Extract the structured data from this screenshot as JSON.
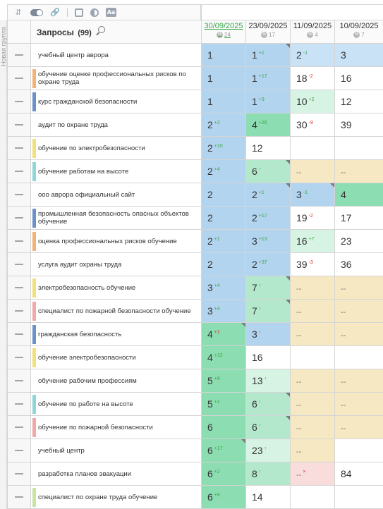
{
  "sidebar": {
    "group_label": "Новая группа"
  },
  "toolbar": {
    "icons": [
      "sort-icon",
      "toggle-icon",
      "link-icon",
      "square-icon",
      "contrast-icon",
      "font-icon"
    ]
  },
  "header": {
    "title": "Запросы",
    "count": "(99)",
    "dates": [
      {
        "label": "30/09/2025",
        "meta": "24",
        "active": true
      },
      {
        "label": "23/09/2025",
        "meta": "17",
        "active": false
      },
      {
        "label": "11/09/2025",
        "meta": "4",
        "active": false
      },
      {
        "label": "10/09/2025",
        "meta": "7",
        "active": false
      }
    ]
  },
  "colors": {
    "bar_orange": "#f2b27a",
    "bar_blue": "#6b92c6",
    "bar_yellow": "#f2e07a",
    "bar_teal": "#8fd7d7",
    "bar_pink": "#f2a8a8",
    "bar_lgreen": "#c7e6a3",
    "bar_none": "transparent"
  },
  "rows": [
    {
      "query": "учебный центр аврора",
      "bar": "bar_none",
      "cells": [
        {
          "v": "1",
          "d": "",
          "t": "t-blue"
        },
        {
          "v": "1",
          "d": "+1",
          "dir": "up",
          "t": "t-blue",
          "corner": true
        },
        {
          "v": "2",
          "d": "-1",
          "dir": "up",
          "t": "t-lblue"
        },
        {
          "v": "3",
          "d": "",
          "t": "t-lblue"
        }
      ]
    },
    {
      "query": "обучение оценке профессиональных рисков по охране труда",
      "bar": "bar_orange",
      "cells": [
        {
          "v": "1",
          "d": "",
          "t": "t-blue"
        },
        {
          "v": "1",
          "d": "+17",
          "dir": "up",
          "t": "t-blue"
        },
        {
          "v": "18",
          "d": "-2",
          "dir": "down",
          "t": "t-white"
        },
        {
          "v": "16",
          "d": "",
          "t": "t-white"
        }
      ]
    },
    {
      "query": "курс гражданской безопасности",
      "bar": "bar_blue",
      "cells": [
        {
          "v": "1",
          "d": "",
          "t": "t-blue"
        },
        {
          "v": "1",
          "d": "+9",
          "dir": "up",
          "t": "t-blue"
        },
        {
          "v": "10",
          "d": "+2",
          "dir": "up",
          "t": "t-vlgreen"
        },
        {
          "v": "12",
          "d": "",
          "t": "t-white"
        }
      ]
    },
    {
      "query": "аудит по охране труда",
      "bar": "bar_none",
      "cells": [
        {
          "v": "2",
          "d": "+2",
          "dir": "up",
          "t": "t-blue"
        },
        {
          "v": "4",
          "d": "+26",
          "dir": "up",
          "t": "t-green"
        },
        {
          "v": "30",
          "d": "-9",
          "dir": "down",
          "t": "t-white"
        },
        {
          "v": "39",
          "d": "",
          "t": "t-white"
        }
      ]
    },
    {
      "query": "обучение по электробезопасности",
      "bar": "bar_yellow",
      "cells": [
        {
          "v": "2",
          "d": "+10",
          "dir": "up",
          "t": "t-blue"
        },
        {
          "v": "12",
          "d": "",
          "t": "t-white"
        },
        {
          "v": "",
          "d": "",
          "t": "t-white"
        },
        {
          "v": "",
          "d": "",
          "t": "t-white"
        }
      ]
    },
    {
      "query": "обучение работам на высоте",
      "bar": "bar_teal",
      "cells": [
        {
          "v": "2",
          "d": "+4",
          "dir": "up",
          "t": "t-blue"
        },
        {
          "v": "6",
          "d": "↑",
          "dir": "up",
          "t": "t-lgreen",
          "corner": true
        },
        {
          "v": "--",
          "d": "",
          "t": "t-yellow",
          "miss": true
        },
        {
          "v": "--",
          "d": "",
          "t": "t-yellow",
          "miss": true
        }
      ]
    },
    {
      "query": "ооо аврора официальный сайт",
      "bar": "bar_none",
      "cells": [
        {
          "v": "2",
          "d": "",
          "t": "t-blue"
        },
        {
          "v": "2",
          "d": "+1",
          "dir": "up",
          "t": "t-blue",
          "corner": true
        },
        {
          "v": "3",
          "d": "-1",
          "dir": "up",
          "t": "t-blue",
          "corner": true
        },
        {
          "v": "4",
          "d": "",
          "t": "t-green"
        }
      ]
    },
    {
      "query": "промышленная безопасность опасных объектов обучение",
      "bar": "bar_blue",
      "cells": [
        {
          "v": "2",
          "d": "",
          "t": "t-blue"
        },
        {
          "v": "2",
          "d": "+17",
          "dir": "up",
          "t": "t-blue"
        },
        {
          "v": "19",
          "d": "-2",
          "dir": "down",
          "t": "t-white"
        },
        {
          "v": "17",
          "d": "",
          "t": "t-white"
        }
      ]
    },
    {
      "query": "оценка профессиональных рисков обучение",
      "bar": "bar_orange",
      "cells": [
        {
          "v": "2",
          "d": "+1",
          "dir": "up",
          "t": "t-blue"
        },
        {
          "v": "3",
          "d": "+13",
          "dir": "up",
          "t": "t-blue"
        },
        {
          "v": "16",
          "d": "+7",
          "dir": "up",
          "t": "t-vlgreen"
        },
        {
          "v": "23",
          "d": "",
          "t": "t-white"
        }
      ]
    },
    {
      "query": "услуга аудит охраны труда",
      "bar": "bar_none",
      "cells": [
        {
          "v": "2",
          "d": "",
          "t": "t-blue"
        },
        {
          "v": "2",
          "d": "+37",
          "dir": "up",
          "t": "t-blue"
        },
        {
          "v": "39",
          "d": "-3",
          "dir": "down",
          "t": "t-white"
        },
        {
          "v": "36",
          "d": "",
          "t": "t-white"
        }
      ]
    },
    {
      "query": "электробезопасность обучение",
      "bar": "bar_yellow",
      "cells": [
        {
          "v": "3",
          "d": "+4",
          "dir": "up",
          "t": "t-blue"
        },
        {
          "v": "7",
          "d": "↑",
          "dir": "up",
          "t": "t-lgreen",
          "corner": true
        },
        {
          "v": "--",
          "d": "",
          "t": "t-yellow",
          "miss": true
        },
        {
          "v": "--",
          "d": "",
          "t": "t-yellow",
          "miss": true
        }
      ]
    },
    {
      "query": "специалист по пожарной безопасности обучение",
      "bar": "bar_pink",
      "cells": [
        {
          "v": "3",
          "d": "+4",
          "dir": "up",
          "t": "t-blue"
        },
        {
          "v": "7",
          "d": "↑",
          "dir": "up",
          "t": "t-lgreen",
          "corner": true
        },
        {
          "v": "--",
          "d": "",
          "t": "t-yellow",
          "miss": true
        },
        {
          "v": "--",
          "d": "",
          "t": "t-yellow",
          "miss": true
        }
      ]
    },
    {
      "query": "гражданская безопасность",
      "bar": "bar_blue",
      "cells": [
        {
          "v": "4",
          "d": "+1",
          "dir": "down",
          "t": "t-green",
          "corner": true
        },
        {
          "v": "3",
          "d": "↑",
          "dir": "up",
          "t": "t-blue"
        },
        {
          "v": "--",
          "d": "",
          "t": "t-yellow",
          "miss": true
        },
        {
          "v": "--",
          "d": "",
          "t": "t-yellow",
          "miss": true
        }
      ]
    },
    {
      "query": "обучение электробезопасности",
      "bar": "bar_yellow",
      "cells": [
        {
          "v": "4",
          "d": "+12",
          "dir": "up",
          "t": "t-green"
        },
        {
          "v": "16",
          "d": "",
          "t": "t-white"
        },
        {
          "v": "",
          "d": "",
          "t": "t-white"
        },
        {
          "v": "",
          "d": "",
          "t": "t-white"
        }
      ]
    },
    {
      "query": "обучение рабочим профессиям",
      "bar": "bar_none",
      "cells": [
        {
          "v": "5",
          "d": "+8",
          "dir": "up",
          "t": "t-green"
        },
        {
          "v": "13",
          "d": "↑",
          "dir": "up",
          "t": "t-vlgreen"
        },
        {
          "v": "--",
          "d": "",
          "t": "t-yellow",
          "miss": true
        },
        {
          "v": "--",
          "d": "",
          "t": "t-yellow",
          "miss": true
        }
      ]
    },
    {
      "query": "обучение по работе на высоте",
      "bar": "bar_teal",
      "cells": [
        {
          "v": "5",
          "d": "+1",
          "dir": "up",
          "t": "t-green"
        },
        {
          "v": "6",
          "d": "↑",
          "dir": "up",
          "t": "t-lgreen",
          "corner": true
        },
        {
          "v": "--",
          "d": "",
          "t": "t-yellow",
          "miss": true
        },
        {
          "v": "--",
          "d": "",
          "t": "t-yellow",
          "miss": true
        }
      ]
    },
    {
      "query": "обучение по пожарной безопасности",
      "bar": "bar_pink",
      "cells": [
        {
          "v": "6",
          "d": "",
          "t": "t-green"
        },
        {
          "v": "6",
          "d": "↑",
          "dir": "up",
          "t": "t-lgreen",
          "corner": true
        },
        {
          "v": "--",
          "d": "",
          "t": "t-yellow",
          "miss": true
        },
        {
          "v": "--",
          "d": "",
          "t": "t-yellow",
          "miss": true
        }
      ]
    },
    {
      "query": "учебный центр",
      "bar": "bar_none",
      "cells": [
        {
          "v": "6",
          "d": "+17",
          "dir": "up",
          "t": "t-green",
          "corner": true
        },
        {
          "v": "23",
          "d": "↑",
          "dir": "up",
          "t": "t-vlgreen"
        },
        {
          "v": "--",
          "d": "",
          "t": "t-yellow",
          "miss": true
        },
        {
          "v": "",
          "d": "",
          "t": "t-white"
        }
      ]
    },
    {
      "query": "разработка планов эвакуации",
      "bar": "bar_none",
      "cells": [
        {
          "v": "6",
          "d": "+2",
          "dir": "up",
          "t": "t-green"
        },
        {
          "v": "8",
          "d": "↑",
          "dir": "up",
          "t": "t-lgreen"
        },
        {
          "v": "--",
          "d": "×",
          "dir": "down",
          "t": "t-pink",
          "miss": true
        },
        {
          "v": "84",
          "d": "",
          "t": "t-white"
        }
      ]
    },
    {
      "query": "специалист по охране труда обучение",
      "bar": "bar_lgreen",
      "cells": [
        {
          "v": "6",
          "d": "+8",
          "dir": "up",
          "t": "t-green"
        },
        {
          "v": "14",
          "d": "",
          "t": "t-white"
        },
        {
          "v": "",
          "d": "",
          "t": "t-white"
        },
        {
          "v": "",
          "d": "",
          "t": "t-white"
        }
      ]
    }
  ]
}
